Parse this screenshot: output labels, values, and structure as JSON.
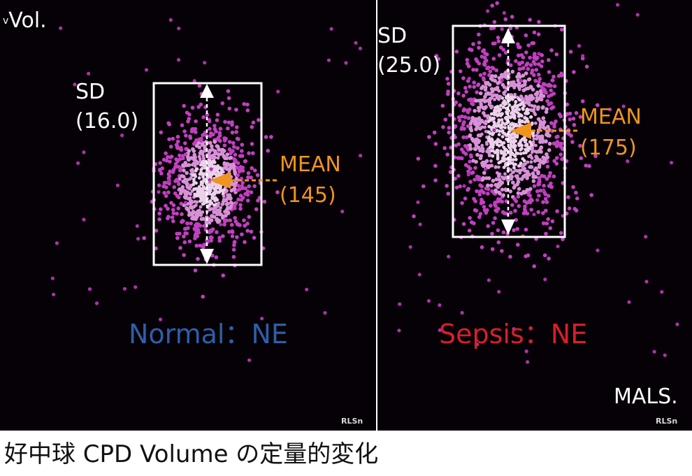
{
  "axis": {
    "y_label": "Vol.",
    "y_marker": "v",
    "x_label": "MALS."
  },
  "caption": "好中球 CPD Volume の定量的変化",
  "software_tag": "RLSn",
  "colors": {
    "dots": "#c040c0",
    "core": "#ecd0ec",
    "mean": "#f0941e",
    "normal": "#2e5ea8",
    "sepsis": "#d81f2a",
    "box": "#ffffff"
  },
  "chart_data": [
    {
      "type": "scatter",
      "group_label": "Normal：NE",
      "group_color": "#2e5ea8",
      "mean": 145,
      "sd": 16.0,
      "mean_label": "MEAN",
      "mean_value_label": "(145)",
      "sd_label": "SD",
      "sd_value_label": "(16.0)"
    },
    {
      "type": "scatter",
      "group_label": "Sepsis：NE",
      "group_color": "#d81f2a",
      "mean": 175,
      "sd": 25.0,
      "mean_label": "MEAN",
      "mean_value_label": "(175)",
      "sd_label": "SD",
      "sd_value_label": "(25.0)"
    }
  ]
}
